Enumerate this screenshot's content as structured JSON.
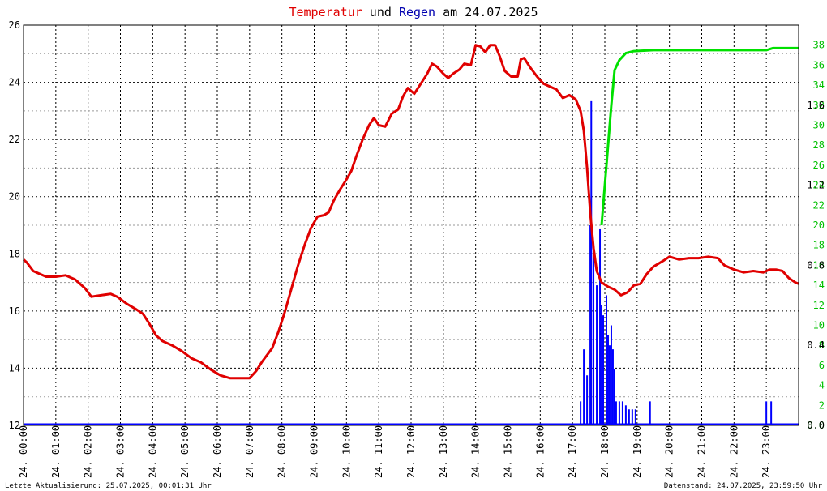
{
  "title": {
    "part1": "Temperatur",
    "part2": " und ",
    "part3": "Regen",
    "part4": " am 24.07.2025",
    "color1": "#e00000",
    "color3": "#0000b0",
    "color_rest": "#000000"
  },
  "footer": {
    "left": "Letzte Aktualisierung: 25.07.2025, 00:01:31 Uhr",
    "right": "Datenstand: 24.07.2025, 23:59:50 Uhr"
  },
  "chart_data": {
    "type": "line",
    "x_unit": "hour of day",
    "xlim": [
      0,
      24
    ],
    "x_tick_labels": [
      "24. 00:00",
      "24. 01:00",
      "24. 02:00",
      "24. 03:00",
      "24. 04:00",
      "24. 05:00",
      "24. 06:00",
      "24. 07:00",
      "24. 08:00",
      "24. 09:00",
      "24. 10:00",
      "24. 11:00",
      "24. 12:00",
      "24. 13:00",
      "24. 14:00",
      "24. 15:00",
      "24. 16:00",
      "24. 17:00",
      "24. 18:00",
      "24. 19:00",
      "24. 20:00",
      "24. 21:00",
      "24. 22:00",
      "24. 23:00"
    ],
    "y_left": {
      "ylim": [
        12,
        26
      ],
      "ticks": [
        "12",
        "14",
        "16",
        "18",
        "20",
        "22",
        "24",
        "26"
      ]
    },
    "y_right_sum": {
      "ylim": [
        0,
        40
      ],
      "ticks": [
        "0.0",
        "2",
        "4",
        "6",
        "8",
        "10",
        "12",
        "14",
        "16",
        "18",
        "20",
        "22",
        "24",
        "26",
        "28",
        "30",
        "32",
        "34",
        "36",
        "38"
      ],
      "color": "#00c000"
    },
    "y_right_rate": {
      "ylim": [
        0,
        2.0
      ],
      "ticks": [
        "0.0",
        "0.4",
        "0.8",
        "1.2",
        "1.6"
      ],
      "color": "#000000"
    },
    "grid": true,
    "series": [
      {
        "axis": "left",
        "color": "#e00000",
        "chart": "line",
        "points": [
          [
            0.0,
            17.8
          ],
          [
            0.1,
            17.7
          ],
          [
            0.3,
            17.4
          ],
          [
            0.5,
            17.3
          ],
          [
            0.7,
            17.2
          ],
          [
            1.0,
            17.2
          ],
          [
            1.3,
            17.25
          ],
          [
            1.6,
            17.1
          ],
          [
            1.9,
            16.8
          ],
          [
            2.1,
            16.5
          ],
          [
            2.4,
            16.55
          ],
          [
            2.7,
            16.6
          ],
          [
            2.9,
            16.5
          ],
          [
            3.2,
            16.25
          ],
          [
            3.5,
            16.05
          ],
          [
            3.7,
            15.9
          ],
          [
            3.9,
            15.55
          ],
          [
            4.1,
            15.15
          ],
          [
            4.3,
            14.95
          ],
          [
            4.6,
            14.8
          ],
          [
            4.9,
            14.6
          ],
          [
            5.2,
            14.35
          ],
          [
            5.5,
            14.2
          ],
          [
            5.8,
            13.95
          ],
          [
            6.1,
            13.75
          ],
          [
            6.4,
            13.65
          ],
          [
            6.7,
            13.65
          ],
          [
            7.0,
            13.65
          ],
          [
            7.2,
            13.9
          ],
          [
            7.4,
            14.25
          ],
          [
            7.7,
            14.7
          ],
          [
            7.9,
            15.3
          ],
          [
            8.1,
            16.0
          ],
          [
            8.3,
            16.8
          ],
          [
            8.5,
            17.6
          ],
          [
            8.7,
            18.3
          ],
          [
            8.9,
            18.9
          ],
          [
            9.1,
            19.3
          ],
          [
            9.3,
            19.35
          ],
          [
            9.45,
            19.45
          ],
          [
            9.6,
            19.85
          ],
          [
            9.8,
            20.25
          ],
          [
            10.0,
            20.6
          ],
          [
            10.15,
            20.9
          ],
          [
            10.3,
            21.4
          ],
          [
            10.5,
            22.0
          ],
          [
            10.7,
            22.5
          ],
          [
            10.85,
            22.75
          ],
          [
            11.0,
            22.5
          ],
          [
            11.2,
            22.45
          ],
          [
            11.4,
            22.9
          ],
          [
            11.6,
            23.05
          ],
          [
            11.75,
            23.5
          ],
          [
            11.9,
            23.8
          ],
          [
            12.1,
            23.6
          ],
          [
            12.3,
            23.95
          ],
          [
            12.5,
            24.3
          ],
          [
            12.65,
            24.65
          ],
          [
            12.8,
            24.55
          ],
          [
            13.0,
            24.3
          ],
          [
            13.15,
            24.15
          ],
          [
            13.3,
            24.3
          ],
          [
            13.5,
            24.45
          ],
          [
            13.65,
            24.65
          ],
          [
            13.85,
            24.6
          ],
          [
            14.0,
            25.3
          ],
          [
            14.15,
            25.25
          ],
          [
            14.3,
            25.05
          ],
          [
            14.45,
            25.3
          ],
          [
            14.6,
            25.3
          ],
          [
            14.75,
            24.9
          ],
          [
            14.9,
            24.4
          ],
          [
            15.1,
            24.2
          ],
          [
            15.3,
            24.2
          ],
          [
            15.4,
            24.8
          ],
          [
            15.5,
            24.85
          ],
          [
            15.7,
            24.5
          ],
          [
            15.9,
            24.2
          ],
          [
            16.1,
            23.95
          ],
          [
            16.3,
            23.85
          ],
          [
            16.5,
            23.75
          ],
          [
            16.7,
            23.45
          ],
          [
            16.9,
            23.55
          ],
          [
            17.1,
            23.4
          ],
          [
            17.25,
            23.0
          ],
          [
            17.35,
            22.3
          ],
          [
            17.45,
            21.0
          ],
          [
            17.55,
            19.4
          ],
          [
            17.65,
            18.2
          ],
          [
            17.75,
            17.4
          ],
          [
            17.9,
            17.0
          ],
          [
            18.1,
            16.85
          ],
          [
            18.3,
            16.75
          ],
          [
            18.5,
            16.55
          ],
          [
            18.7,
            16.65
          ],
          [
            18.9,
            16.9
          ],
          [
            19.1,
            16.95
          ],
          [
            19.3,
            17.3
          ],
          [
            19.5,
            17.55
          ],
          [
            19.8,
            17.75
          ],
          [
            20.0,
            17.9
          ],
          [
            20.3,
            17.8
          ],
          [
            20.6,
            17.85
          ],
          [
            20.9,
            17.85
          ],
          [
            21.2,
            17.9
          ],
          [
            21.5,
            17.85
          ],
          [
            21.7,
            17.6
          ],
          [
            22.0,
            17.45
          ],
          [
            22.3,
            17.35
          ],
          [
            22.6,
            17.4
          ],
          [
            22.9,
            17.35
          ],
          [
            23.1,
            17.45
          ],
          [
            23.3,
            17.45
          ],
          [
            23.5,
            17.4
          ],
          [
            23.7,
            17.15
          ],
          [
            23.9,
            17.0
          ],
          [
            24.0,
            16.95
          ]
        ]
      },
      {
        "axis": "right_sum",
        "color": "#00e000",
        "chart": "line",
        "points": [
          [
            17.9,
            20.0
          ],
          [
            18.0,
            24.0
          ],
          [
            18.1,
            28.0
          ],
          [
            18.2,
            32.0
          ],
          [
            18.3,
            35.5
          ],
          [
            18.45,
            36.5
          ],
          [
            18.65,
            37.2
          ],
          [
            18.9,
            37.4
          ],
          [
            19.5,
            37.5
          ],
          [
            20.0,
            37.5
          ],
          [
            22.0,
            37.5
          ],
          [
            23.0,
            37.5
          ],
          [
            23.2,
            37.7
          ],
          [
            23.5,
            37.7
          ],
          [
            24.0,
            37.7
          ]
        ]
      },
      {
        "axis": "right_rate",
        "color": "#0000ff",
        "chart": "bar",
        "points": [
          [
            17.25,
            0.12
          ],
          [
            17.35,
            0.38
          ],
          [
            17.45,
            0.25
          ],
          [
            17.55,
            1.0
          ],
          [
            17.58,
            1.62
          ],
          [
            17.65,
            0.85
          ],
          [
            17.75,
            0.7
          ],
          [
            17.85,
            0.98
          ],
          [
            17.9,
            0.6
          ],
          [
            17.95,
            0.55
          ],
          [
            18.05,
            0.65
          ],
          [
            18.1,
            0.45
          ],
          [
            18.15,
            0.4
          ],
          [
            18.2,
            0.5
          ],
          [
            18.25,
            0.38
          ],
          [
            18.3,
            0.28
          ],
          [
            18.35,
            0.12
          ],
          [
            18.45,
            0.12
          ],
          [
            18.55,
            0.12
          ],
          [
            18.65,
            0.1
          ],
          [
            18.75,
            0.08
          ],
          [
            18.85,
            0.08
          ],
          [
            18.95,
            0.08
          ],
          [
            19.4,
            0.12
          ],
          [
            23.0,
            0.12
          ],
          [
            23.15,
            0.12
          ]
        ]
      }
    ]
  }
}
